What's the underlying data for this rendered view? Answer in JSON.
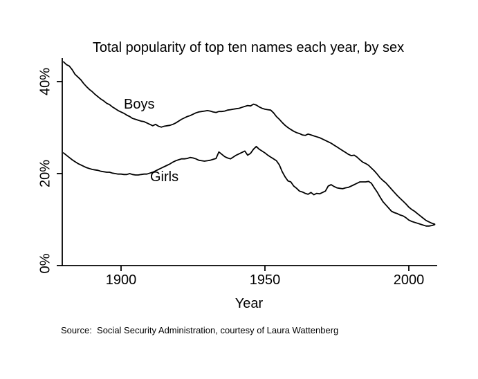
{
  "chart_data": {
    "type": "line",
    "title": "Total popularity of top ten names each year, by sex",
    "xlabel": "Year",
    "ylabel": "",
    "xlim": [
      1880,
      2010
    ],
    "ylim": [
      0,
      45
    ],
    "grid": false,
    "legend_position": "inline-curve-labels",
    "line_color": "#000000",
    "background_color": "#ffffff",
    "x_ticks": [
      {
        "label": "1900",
        "year": 1900
      },
      {
        "label": "1950",
        "year": 1950
      },
      {
        "label": "2000",
        "year": 2000
      }
    ],
    "y_ticks": [
      {
        "label": "0%",
        "pct": 0
      },
      {
        "label": "20%",
        "pct": 20
      },
      {
        "label": "40%",
        "pct": 40
      }
    ],
    "source": "Source:  Social Security Administration, courtesy of Laura Wattenberg",
    "series": [
      {
        "name": "Boys",
        "label": "Boys",
        "points": [
          [
            1880,
            44.3
          ],
          [
            1881,
            43.7
          ],
          [
            1882,
            43.4
          ],
          [
            1883,
            42.6
          ],
          [
            1884,
            41.6
          ],
          [
            1885,
            41.0
          ],
          [
            1886,
            40.4
          ],
          [
            1887,
            39.6
          ],
          [
            1888,
            38.9
          ],
          [
            1889,
            38.3
          ],
          [
            1890,
            37.8
          ],
          [
            1891,
            37.2
          ],
          [
            1892,
            36.7
          ],
          [
            1893,
            36.2
          ],
          [
            1894,
            35.8
          ],
          [
            1895,
            35.3
          ],
          [
            1896,
            35.0
          ],
          [
            1897,
            34.5
          ],
          [
            1898,
            34.1
          ],
          [
            1899,
            33.7
          ],
          [
            1900,
            33.4
          ],
          [
            1901,
            33.1
          ],
          [
            1902,
            32.7
          ],
          [
            1903,
            32.4
          ],
          [
            1904,
            32.0
          ],
          [
            1905,
            31.8
          ],
          [
            1906,
            31.6
          ],
          [
            1907,
            31.4
          ],
          [
            1908,
            31.3
          ],
          [
            1909,
            31.0
          ],
          [
            1910,
            30.7
          ],
          [
            1911,
            30.4
          ],
          [
            1912,
            30.7
          ],
          [
            1913,
            30.3
          ],
          [
            1914,
            30.1
          ],
          [
            1915,
            30.3
          ],
          [
            1916,
            30.4
          ],
          [
            1917,
            30.5
          ],
          [
            1918,
            30.7
          ],
          [
            1919,
            31.0
          ],
          [
            1920,
            31.4
          ],
          [
            1921,
            31.8
          ],
          [
            1922,
            32.1
          ],
          [
            1923,
            32.4
          ],
          [
            1924,
            32.6
          ],
          [
            1925,
            32.9
          ],
          [
            1926,
            33.2
          ],
          [
            1927,
            33.4
          ],
          [
            1928,
            33.5
          ],
          [
            1929,
            33.6
          ],
          [
            1930,
            33.7
          ],
          [
            1931,
            33.6
          ],
          [
            1932,
            33.4
          ],
          [
            1933,
            33.3
          ],
          [
            1934,
            33.5
          ],
          [
            1935,
            33.5
          ],
          [
            1936,
            33.6
          ],
          [
            1937,
            33.8
          ],
          [
            1938,
            33.9
          ],
          [
            1939,
            34.0
          ],
          [
            1940,
            34.1
          ],
          [
            1941,
            34.2
          ],
          [
            1942,
            34.4
          ],
          [
            1943,
            34.6
          ],
          [
            1944,
            34.8
          ],
          [
            1945,
            34.7
          ],
          [
            1946,
            35.1
          ],
          [
            1947,
            34.9
          ],
          [
            1948,
            34.5
          ],
          [
            1949,
            34.2
          ],
          [
            1950,
            34.0
          ],
          [
            1951,
            33.9
          ],
          [
            1952,
            33.8
          ],
          [
            1953,
            33.2
          ],
          [
            1954,
            32.4
          ],
          [
            1955,
            31.8
          ],
          [
            1956,
            31.1
          ],
          [
            1957,
            30.5
          ],
          [
            1958,
            30.0
          ],
          [
            1959,
            29.6
          ],
          [
            1960,
            29.2
          ],
          [
            1961,
            28.9
          ],
          [
            1962,
            28.7
          ],
          [
            1963,
            28.4
          ],
          [
            1964,
            28.3
          ],
          [
            1965,
            28.6
          ],
          [
            1966,
            28.4
          ],
          [
            1967,
            28.2
          ],
          [
            1968,
            28.0
          ],
          [
            1969,
            27.8
          ],
          [
            1970,
            27.5
          ],
          [
            1971,
            27.2
          ],
          [
            1972,
            26.9
          ],
          [
            1973,
            26.6
          ],
          [
            1974,
            26.2
          ],
          [
            1975,
            25.8
          ],
          [
            1976,
            25.4
          ],
          [
            1977,
            25.0
          ],
          [
            1978,
            24.6
          ],
          [
            1979,
            24.2
          ],
          [
            1980,
            23.9
          ],
          [
            1981,
            24.0
          ],
          [
            1982,
            23.6
          ],
          [
            1983,
            23.0
          ],
          [
            1984,
            22.5
          ],
          [
            1985,
            22.2
          ],
          [
            1986,
            21.8
          ],
          [
            1987,
            21.2
          ],
          [
            1988,
            20.6
          ],
          [
            1989,
            19.9
          ],
          [
            1990,
            19.1
          ],
          [
            1991,
            18.5
          ],
          [
            1992,
            18.0
          ],
          [
            1993,
            17.3
          ],
          [
            1994,
            16.6
          ],
          [
            1995,
            15.9
          ],
          [
            1996,
            15.2
          ],
          [
            1997,
            14.6
          ],
          [
            1998,
            14.0
          ],
          [
            1999,
            13.4
          ],
          [
            2000,
            12.7
          ],
          [
            2001,
            12.2
          ],
          [
            2002,
            11.8
          ],
          [
            2003,
            11.3
          ],
          [
            2004,
            10.8
          ],
          [
            2005,
            10.3
          ],
          [
            2006,
            9.8
          ],
          [
            2007,
            9.5
          ],
          [
            2008,
            9.2
          ],
          [
            2009,
            9.0
          ]
        ]
      },
      {
        "name": "Girls",
        "label": "Girls",
        "points": [
          [
            1880,
            24.5
          ],
          [
            1881,
            24.0
          ],
          [
            1882,
            23.5
          ],
          [
            1883,
            23.0
          ],
          [
            1884,
            22.6
          ],
          [
            1885,
            22.2
          ],
          [
            1886,
            21.9
          ],
          [
            1887,
            21.6
          ],
          [
            1888,
            21.3
          ],
          [
            1889,
            21.1
          ],
          [
            1890,
            20.9
          ],
          [
            1891,
            20.8
          ],
          [
            1892,
            20.7
          ],
          [
            1893,
            20.5
          ],
          [
            1894,
            20.4
          ],
          [
            1895,
            20.3
          ],
          [
            1896,
            20.3
          ],
          [
            1897,
            20.1
          ],
          [
            1898,
            20.0
          ],
          [
            1899,
            19.9
          ],
          [
            1900,
            19.9
          ],
          [
            1901,
            19.8
          ],
          [
            1902,
            19.8
          ],
          [
            1903,
            20.0
          ],
          [
            1904,
            19.8
          ],
          [
            1905,
            19.7
          ],
          [
            1906,
            19.7
          ],
          [
            1907,
            19.8
          ],
          [
            1908,
            19.9
          ],
          [
            1909,
            19.9
          ],
          [
            1910,
            20.1
          ],
          [
            1911,
            20.3
          ],
          [
            1912,
            20.6
          ],
          [
            1913,
            20.9
          ],
          [
            1914,
            21.2
          ],
          [
            1915,
            21.5
          ],
          [
            1916,
            21.8
          ],
          [
            1917,
            22.1
          ],
          [
            1918,
            22.5
          ],
          [
            1919,
            22.8
          ],
          [
            1920,
            23.0
          ],
          [
            1921,
            23.2
          ],
          [
            1922,
            23.2
          ],
          [
            1923,
            23.3
          ],
          [
            1924,
            23.5
          ],
          [
            1925,
            23.4
          ],
          [
            1926,
            23.2
          ],
          [
            1927,
            22.9
          ],
          [
            1928,
            22.8
          ],
          [
            1929,
            22.7
          ],
          [
            1930,
            22.8
          ],
          [
            1931,
            22.9
          ],
          [
            1932,
            23.1
          ],
          [
            1933,
            23.3
          ],
          [
            1934,
            24.7
          ],
          [
            1935,
            24.2
          ],
          [
            1936,
            23.7
          ],
          [
            1937,
            23.4
          ],
          [
            1938,
            23.2
          ],
          [
            1939,
            23.6
          ],
          [
            1940,
            24.0
          ],
          [
            1941,
            24.3
          ],
          [
            1942,
            24.6
          ],
          [
            1943,
            24.9
          ],
          [
            1944,
            24.0
          ],
          [
            1945,
            24.4
          ],
          [
            1946,
            25.3
          ],
          [
            1947,
            25.9
          ],
          [
            1948,
            25.3
          ],
          [
            1949,
            24.9
          ],
          [
            1950,
            24.5
          ],
          [
            1951,
            24.0
          ],
          [
            1952,
            23.6
          ],
          [
            1953,
            23.2
          ],
          [
            1954,
            22.8
          ],
          [
            1955,
            21.9
          ],
          [
            1956,
            20.4
          ],
          [
            1957,
            19.3
          ],
          [
            1958,
            18.4
          ],
          [
            1959,
            18.2
          ],
          [
            1960,
            17.3
          ],
          [
            1961,
            16.8
          ],
          [
            1962,
            16.2
          ],
          [
            1963,
            16.0
          ],
          [
            1964,
            15.7
          ],
          [
            1965,
            15.5
          ],
          [
            1966,
            15.9
          ],
          [
            1967,
            15.4
          ],
          [
            1968,
            15.7
          ],
          [
            1969,
            15.6
          ],
          [
            1970,
            15.9
          ],
          [
            1971,
            16.2
          ],
          [
            1972,
            17.3
          ],
          [
            1973,
            17.6
          ],
          [
            1974,
            17.2
          ],
          [
            1975,
            16.9
          ],
          [
            1976,
            16.8
          ],
          [
            1977,
            16.7
          ],
          [
            1978,
            16.9
          ],
          [
            1979,
            17.0
          ],
          [
            1980,
            17.3
          ],
          [
            1981,
            17.6
          ],
          [
            1982,
            17.9
          ],
          [
            1983,
            18.2
          ],
          [
            1984,
            18.2
          ],
          [
            1985,
            18.2
          ],
          [
            1986,
            18.3
          ],
          [
            1987,
            17.9
          ],
          [
            1988,
            16.9
          ],
          [
            1989,
            16.0
          ],
          [
            1990,
            14.9
          ],
          [
            1991,
            13.9
          ],
          [
            1992,
            13.2
          ],
          [
            1993,
            12.5
          ],
          [
            1994,
            11.8
          ],
          [
            1995,
            11.5
          ],
          [
            1996,
            11.3
          ],
          [
            1997,
            11.0
          ],
          [
            1998,
            10.8
          ],
          [
            1999,
            10.4
          ],
          [
            2000,
            9.9
          ],
          [
            2001,
            9.6
          ],
          [
            2002,
            9.4
          ],
          [
            2003,
            9.2
          ],
          [
            2004,
            9.0
          ],
          [
            2005,
            8.8
          ],
          [
            2006,
            8.6
          ],
          [
            2007,
            8.6
          ],
          [
            2008,
            8.7
          ],
          [
            2009,
            8.9
          ]
        ]
      }
    ]
  }
}
